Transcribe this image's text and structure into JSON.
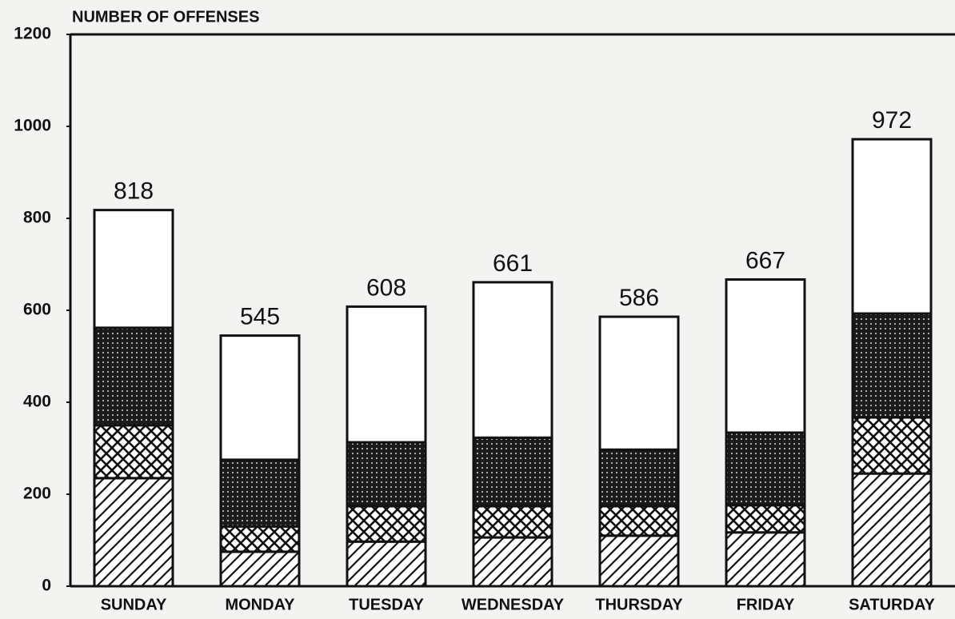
{
  "chart_data": {
    "type": "stacked_bar",
    "y_label": "NUMBER OF OFFENSES",
    "categories": [
      "SUNDAY",
      "MONDAY",
      "TUESDAY",
      "WEDNESDAY",
      "THURSDAY",
      "FRIDAY",
      "SATURDAY"
    ],
    "series": [
      {
        "color": "#111111",
        "pattern": "diagonal",
        "values": [
          235,
          75,
          97,
          106,
          110,
          117,
          245
        ]
      },
      {
        "color": "#111111",
        "pattern": "crosshatch",
        "values": [
          115,
          55,
          77,
          68,
          64,
          59,
          122
        ]
      },
      {
        "color": "#111111",
        "pattern": "dots",
        "values": [
          212,
          145,
          139,
          149,
          123,
          158,
          226
        ]
      },
      {
        "color": "#ffffff",
        "pattern": "none",
        "values": [
          256,
          270,
          295,
          338,
          289,
          333,
          379
        ]
      }
    ],
    "totals": [
      818,
      545,
      608,
      661,
      586,
      667,
      972
    ],
    "ylim": [
      0,
      1200
    ],
    "yticks": [
      0,
      200,
      400,
      600,
      800,
      1000,
      1200
    ],
    "grid": false
  }
}
